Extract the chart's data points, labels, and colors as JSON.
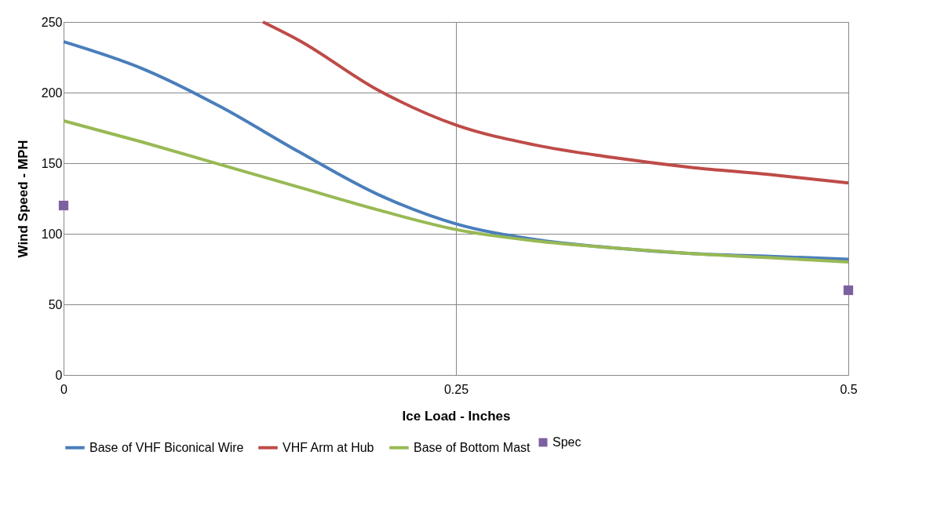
{
  "chart_data": {
    "type": "line",
    "xlabel": "Ice Load - Inches",
    "ylabel": "Wind Speed - MPH",
    "xlim": [
      0,
      0.5
    ],
    "xticks": [
      0,
      0.25,
      0.5
    ],
    "ylim": [
      0,
      250
    ],
    "yticks": [
      0,
      50,
      100,
      150,
      200,
      250
    ],
    "grid": true,
    "legend": "bottom",
    "series": [
      {
        "name": "Base of VHF Biconical Wire",
        "color": "#4a7ebb",
        "x": [
          0,
          0.05,
          0.1,
          0.15,
          0.2,
          0.25,
          0.3,
          0.35,
          0.4,
          0.45,
          0.5
        ],
        "values": [
          236,
          217,
          190,
          158,
          128,
          107,
          96,
          90,
          86,
          84,
          82
        ]
      },
      {
        "name": "VHF Arm at Hub",
        "color": "#be4b48",
        "x": [
          0.127,
          0.15,
          0.2,
          0.25,
          0.3,
          0.35,
          0.4,
          0.45,
          0.5
        ],
        "values": [
          250,
          237,
          202,
          177,
          163,
          154,
          147,
          142,
          136
        ]
      },
      {
        "name": "Base of Bottom Mast",
        "color": "#98b954",
        "x": [
          0,
          0.05,
          0.1,
          0.15,
          0.2,
          0.25,
          0.3,
          0.35,
          0.4,
          0.45,
          0.5
        ],
        "values": [
          180,
          165,
          149,
          133,
          117,
          103,
          95,
          90,
          86,
          83,
          80
        ]
      },
      {
        "name": "Spec",
        "type": "scatter",
        "marker": "square",
        "color": "#7d60a0",
        "x": [
          0,
          0.5
        ],
        "values": [
          120,
          60
        ]
      }
    ]
  }
}
